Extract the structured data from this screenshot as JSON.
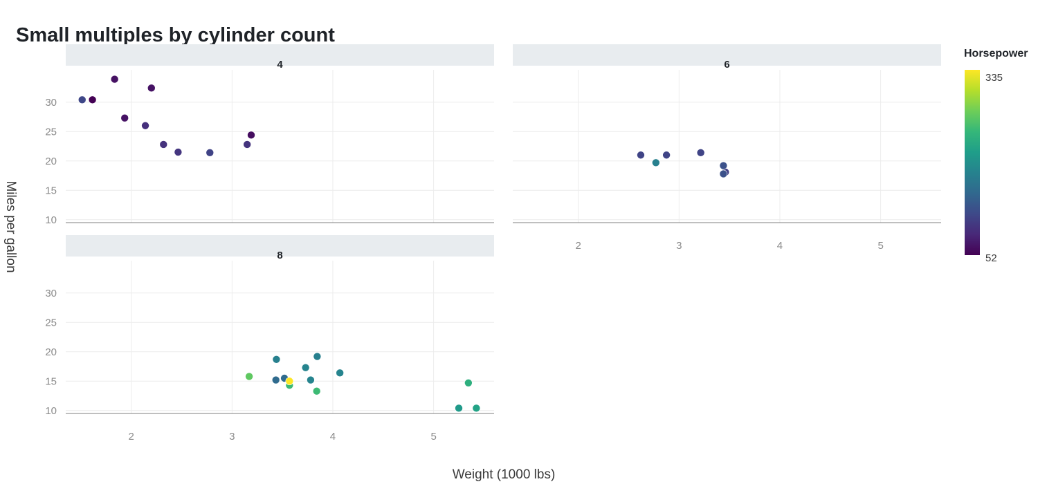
{
  "chart_data": {
    "type": "scatter",
    "title": "Small multiples by cylinder count",
    "xlabel": "Weight (1000 lbs)",
    "ylabel": "Miles per gallon",
    "xlim": [
      1.35,
      5.6
    ],
    "ylim": [
      9.5,
      35.5
    ],
    "x_ticks": [
      2,
      3,
      4,
      5
    ],
    "y_ticks": [
      10,
      15,
      20,
      25,
      30
    ],
    "grid": true,
    "color_scale": {
      "title": "Horsepower",
      "min": 52,
      "max": 335,
      "min_label": "52",
      "max_label": "335",
      "colormap": "viridis",
      "stops": [
        "#440154",
        "#482878",
        "#3e4989",
        "#31688e",
        "#26828e",
        "#1f9e89",
        "#35b779",
        "#6ece58",
        "#b5de2b",
        "#fde725"
      ]
    },
    "panels": [
      {
        "label": "4",
        "points": [
          {
            "x": 2.32,
            "y": 22.8,
            "hp": 93
          },
          {
            "x": 3.19,
            "y": 24.4,
            "hp": 62
          },
          {
            "x": 3.15,
            "y": 22.8,
            "hp": 95
          },
          {
            "x": 2.2,
            "y": 32.4,
            "hp": 66
          },
          {
            "x": 1.615,
            "y": 30.4,
            "hp": 52
          },
          {
            "x": 1.835,
            "y": 33.9,
            "hp": 65
          },
          {
            "x": 2.465,
            "y": 21.5,
            "hp": 97
          },
          {
            "x": 1.935,
            "y": 27.3,
            "hp": 66
          },
          {
            "x": 2.14,
            "y": 26.0,
            "hp": 91
          },
          {
            "x": 1.513,
            "y": 30.4,
            "hp": 113
          },
          {
            "x": 2.78,
            "y": 21.4,
            "hp": 109
          }
        ]
      },
      {
        "label": "6",
        "points": [
          {
            "x": 2.62,
            "y": 21.0,
            "hp": 110
          },
          {
            "x": 2.875,
            "y": 21.0,
            "hp": 110
          },
          {
            "x": 3.215,
            "y": 21.4,
            "hp": 110
          },
          {
            "x": 3.46,
            "y": 18.1,
            "hp": 105
          },
          {
            "x": 3.44,
            "y": 19.2,
            "hp": 123
          },
          {
            "x": 3.44,
            "y": 17.8,
            "hp": 123
          },
          {
            "x": 2.77,
            "y": 19.7,
            "hp": 175
          }
        ]
      },
      {
        "label": "8",
        "points": [
          {
            "x": 3.44,
            "y": 18.7,
            "hp": 175
          },
          {
            "x": 3.57,
            "y": 14.3,
            "hp": 245
          },
          {
            "x": 4.07,
            "y": 16.4,
            "hp": 180
          },
          {
            "x": 3.73,
            "y": 17.3,
            "hp": 180
          },
          {
            "x": 3.78,
            "y": 15.2,
            "hp": 180
          },
          {
            "x": 5.25,
            "y": 10.4,
            "hp": 205
          },
          {
            "x": 5.424,
            "y": 10.4,
            "hp": 215
          },
          {
            "x": 5.345,
            "y": 14.7,
            "hp": 230
          },
          {
            "x": 3.52,
            "y": 15.5,
            "hp": 150
          },
          {
            "x": 3.435,
            "y": 15.2,
            "hp": 150
          },
          {
            "x": 3.84,
            "y": 13.3,
            "hp": 245
          },
          {
            "x": 3.845,
            "y": 19.2,
            "hp": 175
          },
          {
            "x": 3.17,
            "y": 15.8,
            "hp": 264
          },
          {
            "x": 3.57,
            "y": 15.0,
            "hp": 335
          }
        ]
      }
    ]
  }
}
